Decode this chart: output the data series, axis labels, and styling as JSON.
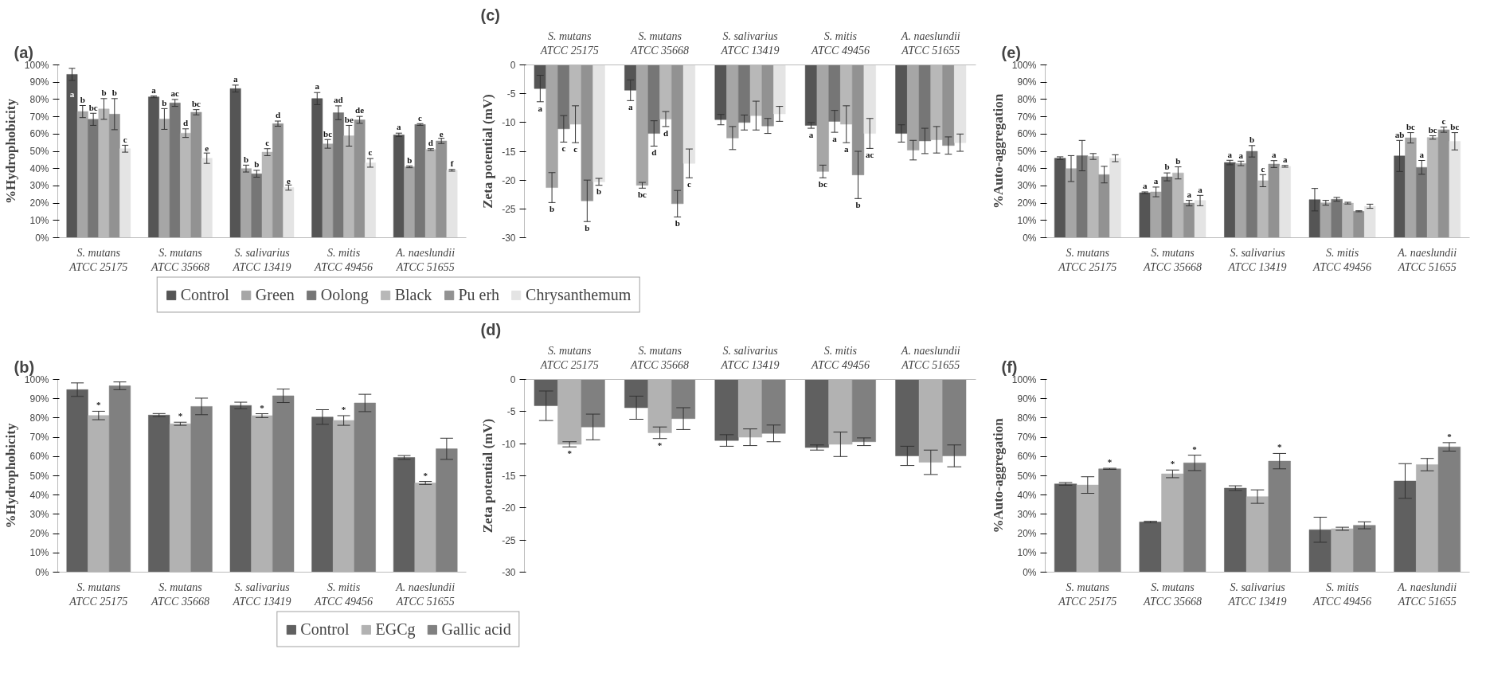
{
  "chart_data": [
    {
      "type": "bar",
      "title": "(a)",
      "ylabel": "%Hydrophobicity",
      "grid": false,
      "legend": false,
      "categories": [
        "S. mutans\nATCC 25175",
        "S. mutans\nATCC 35668",
        "S. salivarius\nATCC 13419",
        "S. mitis\nATCC 49456",
        "A. naeslundii\nATCC 51655"
      ],
      "ylim": [
        0,
        100
      ],
      "yticks": [
        {
          "value": 0,
          "label": "0%"
        },
        {
          "value": 10,
          "label": "10%"
        },
        {
          "value": 20,
          "label": "20%"
        },
        {
          "value": 30,
          "label": "30%"
        },
        {
          "value": 40,
          "label": "40%"
        },
        {
          "value": 50,
          "label": "50%"
        },
        {
          "value": 60,
          "label": "60%"
        },
        {
          "value": 70,
          "label": "70%"
        },
        {
          "value": 80,
          "label": "80%"
        },
        {
          "value": 90,
          "label": "90%"
        },
        {
          "value": 100,
          "label": "100%"
        }
      ],
      "series": [
        {
          "color": "#555555",
          "values": [
            94.5,
            81.5,
            86.3,
            80.5,
            59.5
          ],
          "errors": [
            3.5,
            0.5,
            2,
            3.5,
            1
          ],
          "value_labels": [
            "a",
            "a",
            "a",
            "a",
            "a"
          ]
        },
        {
          "color": "#a6a6a6",
          "values": [
            73,
            68.7,
            40,
            54.3,
            41
          ],
          "errors": [
            3.5,
            6,
            2,
            2.5,
            0.5
          ],
          "value_labels": [
            "b",
            "b",
            "b",
            "bc",
            "b"
          ]
        },
        {
          "color": "#767676",
          "values": [
            68.5,
            78,
            37,
            72.3,
            65.5
          ],
          "errors": [
            3.5,
            2,
            2,
            4,
            0.5
          ],
          "value_labels": [
            "bc",
            "ac",
            "b",
            "ad",
            "c"
          ]
        },
        {
          "color": "#b8b8b8",
          "values": [
            74.5,
            60.5,
            49.5,
            59,
            51
          ],
          "errors": [
            6,
            2.5,
            2,
            6,
            0.5
          ],
          "value_labels": [
            "b",
            "d",
            "c",
            "be",
            "d"
          ]
        },
        {
          "color": "#929292",
          "values": [
            71.5,
            72.6,
            66,
            68.2,
            56
          ],
          "errors": [
            9,
            1.5,
            1.5,
            2,
            1.5
          ],
          "value_labels": [
            "b",
            "bc",
            "d",
            "de",
            "e"
          ]
        },
        {
          "color": "#e4e4e4",
          "values": [
            51.5,
            46,
            29,
            43.3,
            39
          ],
          "errors": [
            2,
            3,
            1.5,
            2.5,
            0.5
          ],
          "value_labels": [
            "c",
            "e",
            "e",
            "c",
            "f"
          ]
        }
      ]
    },
    {
      "type": "bar",
      "title": "(c)",
      "ylabel": "Zeta potential (mV)",
      "grid": false,
      "legend": "bottom",
      "categories": [
        "S. mutans\nATCC 25175",
        "S. mutans\nATCC 35668",
        "S. salivarius\nATCC 13419",
        "S. mitis\nATCC 49456",
        "A. naeslundii\nATCC 51655"
      ],
      "ylim": [
        -30,
        0
      ],
      "yticks": [
        -30,
        -25,
        -20,
        -15,
        -10,
        -5,
        0
      ],
      "series": [
        {
          "name": "Control",
          "color": "#555555",
          "values": [
            -4.1,
            -4.4,
            -9.5,
            -10.5,
            -11.9
          ],
          "errors": [
            2.3,
            1.8,
            0.9,
            0.5,
            1.5
          ],
          "value_labels": [
            "a",
            "a",
            null,
            "a",
            null
          ]
        },
        {
          "name": "Green",
          "color": "#a6a6a6",
          "values": [
            -21.3,
            -20.9,
            -12.7,
            -18.5,
            -14.8
          ],
          "errors": [
            2.6,
            0.5,
            2,
            1.1,
            1.7
          ],
          "value_labels": [
            "b",
            "bc",
            null,
            "bc",
            null
          ]
        },
        {
          "name": "Oolong",
          "color": "#767676",
          "values": [
            -11.1,
            -11.9,
            -10.0,
            -9.8,
            -13.2
          ],
          "errors": [
            2.3,
            2.2,
            1.3,
            1.9,
            2.2
          ],
          "value_labels": [
            "c",
            "d",
            null,
            "a",
            null
          ]
        },
        {
          "name": "Black",
          "color": "#b8b8b8",
          "values": [
            -10.3,
            -9.4,
            -8.8,
            -10.3,
            -13.0
          ],
          "errors": [
            3.2,
            1.3,
            2.5,
            3.2,
            2.3
          ],
          "value_labels": [
            "c",
            "d",
            null,
            "a",
            null
          ]
        },
        {
          "name": "Pu erh",
          "color": "#929292",
          "values": [
            -23.6,
            -24.1,
            -10.6,
            -19.1,
            -14.0
          ],
          "errors": [
            3.6,
            2.3,
            1.3,
            4.1,
            1.5
          ],
          "value_labels": [
            "b",
            "b",
            null,
            "b",
            null
          ]
        },
        {
          "name": "Chrysanthemum",
          "color": "#e4e4e4",
          "values": [
            -20.3,
            -17.1,
            -8.5,
            -11.9,
            -13.5
          ],
          "errors": [
            0.6,
            2.5,
            1.3,
            2.6,
            1.5
          ],
          "value_labels": [
            "b",
            "c",
            null,
            "ac",
            null
          ]
        }
      ]
    },
    {
      "type": "bar",
      "title": "(e)",
      "ylabel": "%Auto-aggregation",
      "grid": false,
      "legend": false,
      "categories": [
        "S. mutans\nATCC 25175",
        "S. mutans\nATCC 35668",
        "S. salivarius\nATCC 13419",
        "S. mitis\nATCC 49456",
        "A. naeslundii\nATCC 51655"
      ],
      "ylim": [
        0,
        100
      ],
      "yticks": [
        {
          "value": 0,
          "label": "0%"
        },
        {
          "value": 10,
          "label": "10%"
        },
        {
          "value": 20,
          "label": "20%"
        },
        {
          "value": 30,
          "label": "30%"
        },
        {
          "value": 40,
          "label": "40%"
        },
        {
          "value": 50,
          "label": "50%"
        },
        {
          "value": 60,
          "label": "60%"
        },
        {
          "value": 70,
          "label": "70%"
        },
        {
          "value": 80,
          "label": "80%"
        },
        {
          "value": 90,
          "label": "90%"
        },
        {
          "value": 100,
          "label": "100%"
        }
      ],
      "series": [
        {
          "color": "#555555",
          "values": [
            46,
            26,
            43.5,
            22,
            47.3
          ],
          "errors": [
            0.8,
            0.5,
            1.3,
            6.5,
            9
          ],
          "value_labels": [
            null,
            "a",
            "a",
            null,
            "ab"
          ]
        },
        {
          "color": "#a6a6a6",
          "values": [
            40,
            26.5,
            43,
            20.2,
            57.8
          ],
          "errors": [
            7.5,
            2.8,
            1.3,
            1.4,
            3
          ],
          "value_labels": [
            null,
            "a",
            "a",
            null,
            "bc"
          ]
        },
        {
          "color": "#767676",
          "values": [
            47.5,
            35.2,
            50,
            22.2,
            40.7
          ],
          "errors": [
            8.8,
            2.3,
            3.3,
            1.1,
            4
          ],
          "value_labels": [
            null,
            "b",
            "b",
            null,
            "a"
          ]
        },
        {
          "color": "#b8b8b8",
          "values": [
            47,
            37.5,
            33,
            20,
            58
          ],
          "errors": [
            1.7,
            3.5,
            3.5,
            0.5,
            1
          ],
          "value_labels": [
            null,
            "b",
            "c",
            null,
            "bc"
          ]
        },
        {
          "color": "#929292",
          "values": [
            36.5,
            20,
            42.6,
            15.3,
            62.5
          ],
          "errors": [
            4.8,
            1.6,
            2,
            0.3,
            1.5
          ],
          "value_labels": [
            null,
            "a",
            "a",
            null,
            "c"
          ]
        },
        {
          "color": "#e4e4e4",
          "values": [
            46,
            21.5,
            41.3,
            18.2,
            55.8
          ],
          "errors": [
            2,
            3,
            0.5,
            1.2,
            5
          ],
          "value_labels": [
            null,
            "a",
            "a",
            null,
            "bc"
          ]
        }
      ]
    },
    {
      "type": "bar",
      "title": "(b)",
      "ylabel": "%Hydrophobicity",
      "grid": false,
      "legend": false,
      "categories": [
        "S. mutans\nATCC 25175",
        "S. mutans\nATCC 35668",
        "S. salivarius\nATCC 13419",
        "S. mitis\nATCC 49456",
        "A. naeslundii\nATCC 51655"
      ],
      "ylim": [
        0,
        100
      ],
      "yticks": [
        {
          "value": 0,
          "label": "0%"
        },
        {
          "value": 10,
          "label": "10%"
        },
        {
          "value": 20,
          "label": "20%"
        },
        {
          "value": 30,
          "label": "30%"
        },
        {
          "value": 40,
          "label": "40%"
        },
        {
          "value": 50,
          "label": "50%"
        },
        {
          "value": 60,
          "label": "60%"
        },
        {
          "value": 70,
          "label": "70%"
        },
        {
          "value": 80,
          "label": "80%"
        },
        {
          "value": 90,
          "label": "90%"
        },
        {
          "value": 100,
          "label": "100%"
        }
      ],
      "series": [
        {
          "color": "#606060",
          "values": [
            94.7,
            81.5,
            86.5,
            80.5,
            59.5
          ],
          "errors": [
            3.5,
            0.8,
            1.7,
            3.8,
            1
          ]
        },
        {
          "color": "#b2b2b2",
          "values": [
            81.3,
            77,
            81.2,
            78.7,
            46.3
          ],
          "errors": [
            2.2,
            0.8,
            1,
            2.5,
            0.8
          ],
          "value_labels": [
            "*",
            "*",
            "*",
            "*",
            "*"
          ]
        },
        {
          "color": "#808080",
          "values": [
            96.7,
            86,
            91.5,
            87.8,
            64
          ],
          "errors": [
            2,
            4.3,
            3.5,
            4.5,
            5.5
          ]
        }
      ]
    },
    {
      "type": "bar",
      "title": "(d)",
      "ylabel": "Zeta potential (mV)",
      "grid": false,
      "legend": "bottom",
      "categories": [
        "S. mutans\nATCC 25175",
        "S. mutans\nATCC 35668",
        "S. salivarius\nATCC 13419",
        "S. mitis\nATCC 49456",
        "A. naeslundii\nATCC 51655"
      ],
      "ylim": [
        -30,
        0
      ],
      "yticks": [
        -30,
        -25,
        -20,
        -15,
        -10,
        -5,
        0
      ],
      "series": [
        {
          "name": "Control",
          "color": "#606060",
          "values": [
            -4.1,
            -4.4,
            -9.5,
            -10.6,
            -11.9
          ],
          "errors": [
            2.3,
            1.8,
            0.9,
            0.4,
            1.5
          ]
        },
        {
          "name": "EGCg",
          "color": "#b2b2b2",
          "values": [
            -10.1,
            -8.3,
            -9.0,
            -10.1,
            -12.9
          ],
          "errors": [
            0.4,
            0.9,
            1.3,
            1.9,
            1.9
          ],
          "value_labels": [
            "*",
            "*",
            null,
            null,
            null
          ]
        },
        {
          "name": "Gallic acid",
          "color": "#808080",
          "values": [
            -7.4,
            -6.1,
            -8.4,
            -9.7,
            -11.9
          ],
          "errors": [
            2,
            1.7,
            1.3,
            0.6,
            1.7
          ]
        }
      ]
    },
    {
      "type": "bar",
      "title": "(f)",
      "ylabel": "%Auto-aggregation",
      "grid": false,
      "legend": false,
      "categories": [
        "S. mutans\nATCC 25175",
        "S. mutans\nATCC 35668",
        "S. salivarius\nATCC 13419",
        "S. mitis\nATCC 49456",
        "A. naeslundii\nATCC 51655"
      ],
      "ylim": [
        0,
        100
      ],
      "yticks": [
        {
          "value": 0,
          "label": "0%"
        },
        {
          "value": 10,
          "label": "10%"
        },
        {
          "value": 20,
          "label": "20%"
        },
        {
          "value": 30,
          "label": "30%"
        },
        {
          "value": 40,
          "label": "40%"
        },
        {
          "value": 50,
          "label": "50%"
        },
        {
          "value": 60,
          "label": "60%"
        },
        {
          "value": 70,
          "label": "70%"
        },
        {
          "value": 80,
          "label": "80%"
        },
        {
          "value": 90,
          "label": "90%"
        },
        {
          "value": 100,
          "label": "100%"
        }
      ],
      "series": [
        {
          "color": "#606060",
          "values": [
            45.8,
            26,
            43.6,
            22,
            47.3
          ],
          "errors": [
            0.7,
            0.4,
            1.2,
            6.5,
            9
          ]
        },
        {
          "color": "#b2b2b2",
          "values": [
            45.2,
            51,
            39.2,
            22.5,
            55.8
          ],
          "errors": [
            4.3,
            2,
            3.5,
            0.8,
            3.2
          ],
          "value_labels": [
            null,
            "*",
            null,
            null,
            null
          ]
        },
        {
          "color": "#808080",
          "values": [
            53.6,
            56.7,
            57.6,
            24.3,
            65
          ],
          "errors": [
            0.3,
            4,
            4,
            1.8,
            2.2
          ],
          "value_labels": [
            "*",
            "*",
            "*",
            null,
            "*"
          ]
        }
      ]
    }
  ]
}
